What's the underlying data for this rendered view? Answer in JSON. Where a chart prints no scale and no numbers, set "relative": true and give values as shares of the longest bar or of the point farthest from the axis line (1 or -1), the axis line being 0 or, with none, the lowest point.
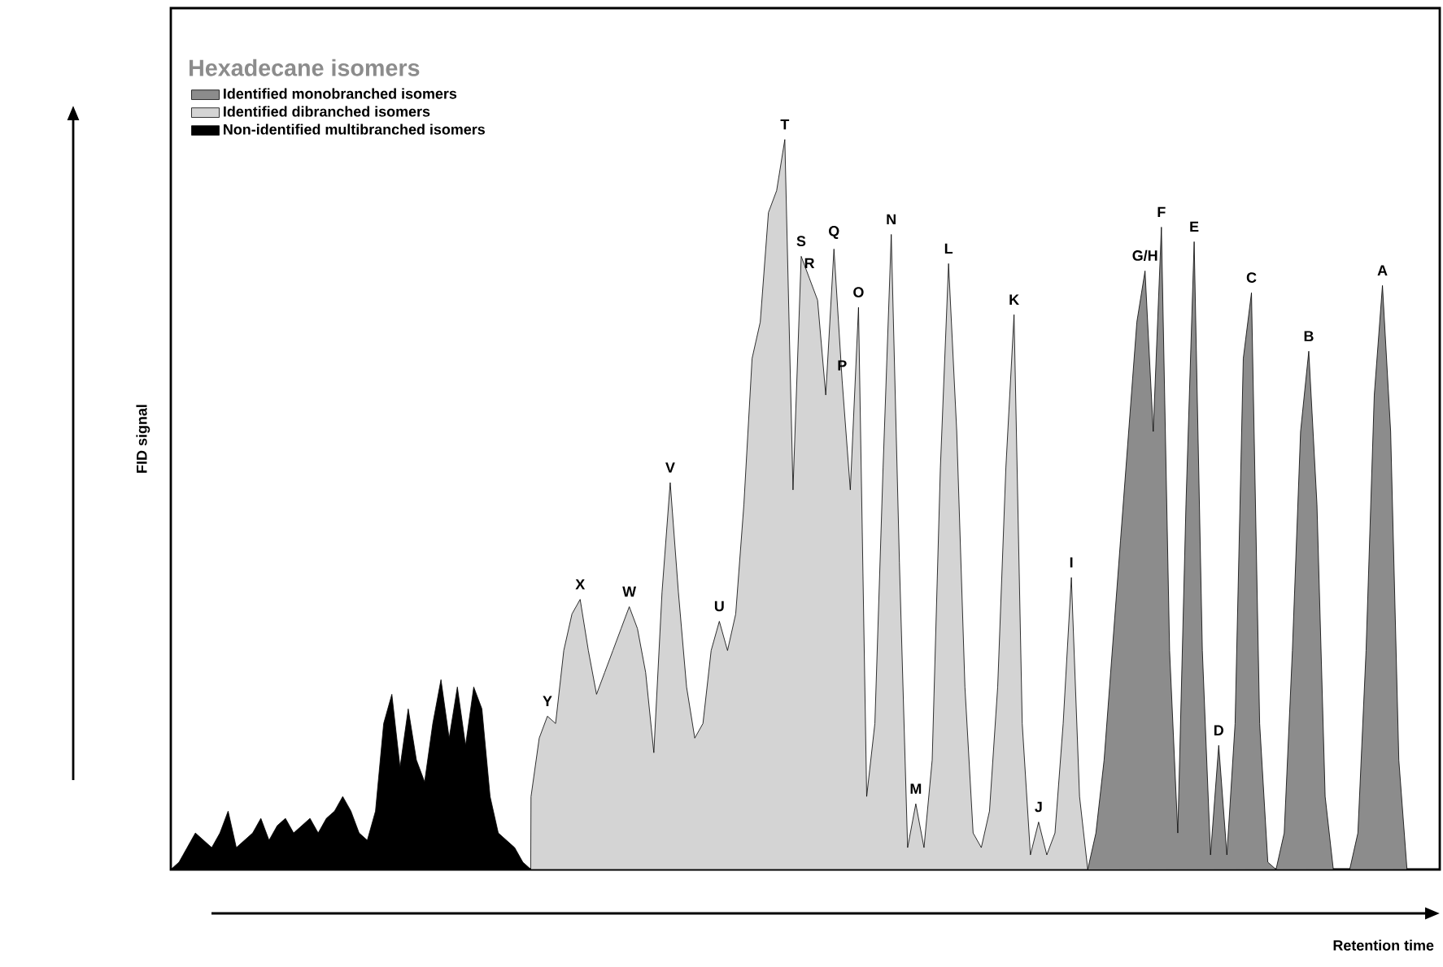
{
  "chart_data": {
    "type": "area",
    "relative": true,
    "xlabel": "Retention time",
    "ylabel": "FID signal",
    "legend_title": "Hexadecane isomers",
    "legend": "top left",
    "categories": [
      null,
      null,
      null,
      null,
      null,
      null,
      null,
      null,
      null,
      null,
      null,
      null,
      null,
      null,
      null,
      null,
      null,
      null,
      null,
      null,
      null,
      null,
      null,
      null,
      null,
      null,
      null,
      null,
      null,
      null,
      null,
      null,
      null,
      null,
      null,
      null,
      null,
      null,
      null,
      null,
      null,
      null,
      null,
      null,
      null,
      null,
      null,
      null,
      null,
      null,
      null,
      null,
      null,
      null,
      null,
      null,
      null,
      null,
      null,
      null,
      null,
      null,
      null,
      null,
      null,
      null,
      null,
      null,
      null,
      null,
      null,
      null,
      null,
      null,
      null,
      null,
      null,
      null,
      null,
      null,
      null,
      null,
      null,
      null,
      null,
      null,
      null,
      null,
      null,
      null,
      null,
      null,
      null,
      null,
      null,
      null,
      null,
      null,
      null,
      null,
      null,
      null,
      null,
      null,
      null,
      null,
      null,
      null,
      null,
      null,
      null,
      null,
      null,
      null,
      null,
      null,
      null,
      null,
      null,
      null,
      null,
      null,
      null,
      null,
      null,
      null,
      null,
      null,
      null,
      null,
      null,
      null,
      null,
      null,
      null,
      null,
      null,
      null,
      null,
      null,
      null,
      null,
      null,
      null,
      null,
      null,
      null,
      null,
      null,
      null,
      null,
      null,
      null,
      null,
      null,
      null
    ],
    "series": [
      {
        "name": "Identified monobranched isomers",
        "color": "#8c8c8c",
        "values": [
          null,
          null,
          null,
          null,
          null,
          null,
          null,
          null,
          null,
          null,
          null,
          null,
          null,
          null,
          null,
          null,
          null,
          null,
          null,
          null,
          null,
          null,
          null,
          null,
          null,
          null,
          null,
          null,
          null,
          null,
          null,
          null,
          null,
          null,
          null,
          null,
          null,
          null,
          null,
          null,
          null,
          null,
          null,
          null,
          null,
          null,
          null,
          null,
          null,
          null,
          null,
          null,
          null,
          null,
          null,
          null,
          null,
          null,
          null,
          null,
          null,
          null,
          null,
          null,
          null,
          null,
          null,
          null,
          null,
          null,
          null,
          null,
          null,
          null,
          null,
          null,
          null,
          null,
          null,
          null,
          null,
          null,
          null,
          null,
          null,
          null,
          null,
          null,
          null,
          null,
          null,
          null,
          null,
          null,
          null,
          null,
          null,
          null,
          null,
          null,
          null,
          null,
          null,
          null,
          null,
          null,
          null,
          null,
          null,
          null,
          null,
          null,
          0,
          0.05,
          0.15,
          0.3,
          0.45,
          0.6,
          0.75,
          0.82,
          0.6,
          0.88,
          0.3,
          0.05,
          0.5,
          0.86,
          0.3,
          0.02,
          0.17,
          0.02,
          0.2,
          0.7,
          0.79,
          0.2,
          0.01,
          0,
          0.05,
          0.3,
          0.6,
          0.71,
          0.5,
          0.1,
          0,
          0,
          0,
          0.05,
          0.3,
          0.65,
          0.8,
          0.6,
          0.15,
          0,
          0,
          0,
          0,
          0
        ]
      },
      {
        "name": "Identified dibranched isomers",
        "color": "#d4d4d4",
        "values": [
          null,
          null,
          null,
          null,
          null,
          null,
          null,
          null,
          null,
          null,
          null,
          null,
          null,
          null,
          null,
          null,
          null,
          null,
          null,
          null,
          null,
          null,
          null,
          null,
          null,
          null,
          null,
          null,
          null,
          null,
          null,
          null,
          null,
          null,
          null,
          null,
          null,
          null,
          null,
          null,
          null,
          null,
          null,
          null,
          0.1,
          0.18,
          0.21,
          0.2,
          0.3,
          0.35,
          0.37,
          0.3,
          0.24,
          0.27,
          0.3,
          0.33,
          0.36,
          0.33,
          0.27,
          0.16,
          0.38,
          0.53,
          0.38,
          0.25,
          0.18,
          0.2,
          0.3,
          0.34,
          0.3,
          0.35,
          0.5,
          0.7,
          0.75,
          0.9,
          0.93,
          1,
          0.52,
          0.84,
          0.81,
          0.78,
          0.65,
          0.85,
          0.67,
          0.52,
          0.77,
          0.1,
          0.2,
          0.55,
          0.87,
          0.42,
          0.03,
          0.09,
          0.03,
          0.15,
          0.55,
          0.83,
          0.6,
          0.25,
          0.05,
          0.03,
          0.08,
          0.25,
          0.55,
          0.76,
          0.2,
          0.02,
          0.065,
          0.02,
          0.05,
          0.2,
          0.4,
          0.1,
          0,
          null,
          null,
          null,
          null,
          null,
          null,
          null,
          null,
          null,
          null,
          null,
          null,
          null,
          null,
          null,
          null,
          null,
          null,
          null,
          null,
          null,
          null,
          null,
          null,
          null,
          null,
          null,
          null,
          null,
          null,
          null,
          null,
          null,
          null,
          null,
          null,
          null,
          null,
          null,
          null,
          null,
          null,
          null
        ]
      },
      {
        "name": "Non-identified multibranched isomers",
        "color": "#000000",
        "values": [
          0,
          0.01,
          0.03,
          0.05,
          0.04,
          0.03,
          0.05,
          0.08,
          0.03,
          0.04,
          0.05,
          0.07,
          0.04,
          0.06,
          0.07,
          0.05,
          0.06,
          0.07,
          0.05,
          0.07,
          0.08,
          0.1,
          0.08,
          0.05,
          0.04,
          0.08,
          0.2,
          0.24,
          0.14,
          0.22,
          0.15,
          0.12,
          0.2,
          0.26,
          0.18,
          0.25,
          0.17,
          0.25,
          0.22,
          0.1,
          0.05,
          0.04,
          0.03,
          0.01,
          0,
          null,
          null,
          null,
          null,
          null,
          null,
          null,
          null,
          null,
          null,
          null,
          null,
          null,
          null,
          null,
          null,
          null,
          null,
          null,
          null,
          null,
          null,
          null,
          null,
          null,
          null,
          null,
          null,
          null,
          null,
          null,
          null,
          null,
          null,
          null,
          null,
          null,
          null,
          null,
          null,
          null,
          null,
          null,
          null,
          null,
          null,
          null,
          null,
          null,
          null,
          null,
          null,
          null,
          null,
          null,
          null,
          null,
          null,
          null,
          null,
          null,
          null,
          null,
          null,
          null,
          null,
          null,
          null,
          null,
          null,
          null,
          null,
          null,
          null,
          null,
          null,
          null,
          null,
          null,
          null,
          null,
          null,
          null,
          null,
          null,
          null,
          null,
          null,
          null,
          null,
          null,
          null,
          null,
          null,
          null,
          null,
          null,
          null,
          null,
          null,
          null,
          null,
          null,
          null,
          null,
          null,
          null,
          null,
          null,
          null,
          null
        ]
      }
    ],
    "annotations": [
      {
        "text": "Y",
        "y": 0.21
      },
      {
        "text": "X",
        "y": 0.37
      },
      {
        "text": "W",
        "y": 0.36
      },
      {
        "text": "V",
        "y": 0.53
      },
      {
        "text": "U",
        "y": 0.34
      },
      {
        "text": "T",
        "y": 1
      },
      {
        "text": "S",
        "y": 0.84
      },
      {
        "text": "R",
        "y": 0.81
      },
      {
        "text": "Q",
        "y": 0.85
      },
      {
        "text": "P",
        "y": 0.67
      },
      {
        "text": "O",
        "y": 0.77
      },
      {
        "text": "N",
        "y": 0.87
      },
      {
        "text": "M",
        "y": 0.09
      },
      {
        "text": "L",
        "y": 0.83
      },
      {
        "text": "K",
        "y": 0.76
      },
      {
        "text": "J",
        "y": 0.065
      },
      {
        "text": "I",
        "y": 0.4
      },
      {
        "text": "G/H",
        "y": 0.82
      },
      {
        "text": "F",
        "y": 0.88
      },
      {
        "text": "E",
        "y": 0.86
      },
      {
        "text": "D",
        "y": 0.17
      },
      {
        "text": "C",
        "y": 0.79
      },
      {
        "text": "B",
        "y": 0.71
      },
      {
        "text": "A",
        "y": 0.8
      }
    ]
  }
}
